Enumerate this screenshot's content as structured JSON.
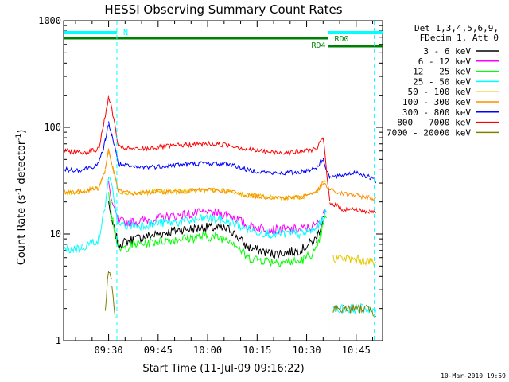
{
  "chart_data": {
    "type": "line",
    "title": "HESSI Observing Summary Count Rates",
    "xlabel": "Start Time (11-Jul-09 09:16:22)",
    "ylabel_prefix": "Count Rate (s",
    "ylabel_sup1": "-1",
    "ylabel_mid": " detector",
    "ylabel_sup2": "-1",
    "ylabel_suffix": ")",
    "y_scale": "log",
    "ylim": [
      1,
      1000
    ],
    "xlim": [
      "09:16:22",
      "10:53:00"
    ],
    "x_ticks": [
      "09:30",
      "09:45",
      "10:00",
      "10:15",
      "10:30",
      "10:45"
    ],
    "y_ticks": [
      "1",
      "10",
      "100",
      "1000"
    ],
    "legend_title_1": "Det 1,3,4,5,6,9,",
    "legend_title_2": "FDecim 1, Att 0",
    "legend_placement": "right",
    "annotations": {
      "n_label": "N",
      "rd0_label": "RD0",
      "rd4_label": "RD4"
    },
    "timestamp": "10-Mar-2010 19:59",
    "series": [
      {
        "name": "3 - 6 keV",
        "color": "#000000",
        "values": [
          [
            "09:16:22",
            null
          ],
          [
            "09:28:00",
            null
          ],
          [
            "09:30:00",
            20
          ],
          [
            "09:31:00",
            13
          ],
          [
            "09:33:00",
            8
          ],
          [
            "09:38:00",
            9
          ],
          [
            "09:45:00",
            10
          ],
          [
            "09:52:00",
            11
          ],
          [
            "10:00:00",
            11.5
          ],
          [
            "10:07:00",
            11
          ],
          [
            "10:12:00",
            7.5
          ],
          [
            "10:20:00",
            6.5
          ],
          [
            "10:28:00",
            7
          ],
          [
            "10:33:00",
            9
          ],
          [
            "10:35:00",
            14
          ],
          [
            "10:36:00",
            16
          ],
          [
            "10:37:00",
            null
          ]
        ]
      },
      {
        "name": "6 - 12 keV",
        "color": "#ff00ff",
        "values": [
          [
            "09:16:22",
            null
          ],
          [
            "09:28:00",
            null
          ],
          [
            "09:30:00",
            30
          ],
          [
            "09:31:00",
            20
          ],
          [
            "09:33:00",
            13
          ],
          [
            "09:38:00",
            13
          ],
          [
            "09:45:00",
            14
          ],
          [
            "09:52:00",
            15
          ],
          [
            "10:00:00",
            16
          ],
          [
            "10:07:00",
            15
          ],
          [
            "10:12:00",
            12
          ],
          [
            "10:20:00",
            11
          ],
          [
            "10:28:00",
            11
          ],
          [
            "10:33:00",
            12
          ],
          [
            "10:35:00",
            15
          ],
          [
            "10:36:00",
            17
          ],
          [
            "10:37:00",
            null
          ]
        ]
      },
      {
        "name": "12 - 25 keV",
        "color": "#00ff00",
        "values": [
          [
            "09:16:22",
            null
          ],
          [
            "09:28:00",
            null
          ],
          [
            "09:30:00",
            25
          ],
          [
            "09:31:00",
            15
          ],
          [
            "09:33:00",
            7
          ],
          [
            "09:38:00",
            8
          ],
          [
            "09:45:00",
            8.5
          ],
          [
            "09:52:00",
            9
          ],
          [
            "10:00:00",
            9.5
          ],
          [
            "10:07:00",
            9
          ],
          [
            "10:12:00",
            6
          ],
          [
            "10:20:00",
            5.5
          ],
          [
            "10:28:00",
            5.5
          ],
          [
            "10:33:00",
            7
          ],
          [
            "10:35:00",
            12
          ],
          [
            "10:36:00",
            15
          ],
          [
            "10:37:00",
            null
          ]
        ]
      },
      {
        "name": "25 - 50 keV",
        "color": "#00ffff",
        "values": [
          [
            "09:16:22",
            7
          ],
          [
            "09:22:00",
            7.5
          ],
          [
            "09:27:00",
            9
          ],
          [
            "09:29:00",
            18
          ],
          [
            "09:30:00",
            35
          ],
          [
            "09:31:00",
            28
          ],
          [
            "09:32:00",
            18
          ],
          [
            "09:33:00",
            12
          ],
          [
            "09:38:00",
            12
          ],
          [
            "09:45:00",
            12.5
          ],
          [
            "09:52:00",
            13
          ],
          [
            "10:00:00",
            14
          ],
          [
            "10:07:00",
            13
          ],
          [
            "10:12:00",
            11
          ],
          [
            "10:20:00",
            10
          ],
          [
            "10:28:00",
            10
          ],
          [
            "10:33:00",
            11
          ],
          [
            "10:35:00",
            14
          ],
          [
            "10:36:00",
            16
          ],
          [
            "10:37:00",
            null
          ],
          [
            "10:38:00",
            2
          ],
          [
            "10:41:00",
            2
          ],
          [
            "10:45:00",
            2
          ],
          [
            "10:49:00",
            2
          ],
          [
            "10:51:00",
            1.8
          ]
        ]
      },
      {
        "name": "50 - 100 keV",
        "color": "#e6c800",
        "values": [
          [
            "09:16:22",
            24
          ],
          [
            "09:22:00",
            25
          ],
          [
            "09:27:00",
            27
          ],
          [
            "09:29:00",
            40
          ],
          [
            "09:30:00",
            60
          ],
          [
            "09:31:00",
            45
          ],
          [
            "09:33:00",
            25
          ],
          [
            "09:38:00",
            24
          ],
          [
            "09:45:00",
            25
          ],
          [
            "09:52:00",
            25
          ],
          [
            "10:00:00",
            26
          ],
          [
            "10:07:00",
            25
          ],
          [
            "10:12:00",
            23
          ],
          [
            "10:20:00",
            22
          ],
          [
            "10:28:00",
            22
          ],
          [
            "10:33:00",
            24
          ],
          [
            "10:35:00",
            30
          ],
          [
            "10:36:00",
            32
          ],
          [
            "10:37:00",
            null
          ],
          [
            "10:38:00",
            6
          ],
          [
            "10:43:00",
            5.8
          ],
          [
            "10:48:00",
            5.6
          ],
          [
            "10:51:00",
            5.2
          ]
        ]
      },
      {
        "name": "100 - 300 keV",
        "color": "#ff8c00",
        "values": [
          [
            "09:16:22",
            25
          ],
          [
            "09:22:00",
            25
          ],
          [
            "09:27:00",
            27
          ],
          [
            "09:29:00",
            40
          ],
          [
            "09:30:00",
            63
          ],
          [
            "09:31:00",
            45
          ],
          [
            "09:33:00",
            25
          ],
          [
            "09:38:00",
            24
          ],
          [
            "09:45:00",
            25
          ],
          [
            "09:52:00",
            25
          ],
          [
            "10:00:00",
            26
          ],
          [
            "10:07:00",
            25
          ],
          [
            "10:12:00",
            23
          ],
          [
            "10:20:00",
            22
          ],
          [
            "10:28:00",
            22
          ],
          [
            "10:33:00",
            25
          ],
          [
            "10:35:00",
            30
          ],
          [
            "10:37:00",
            26
          ],
          [
            "10:40:00",
            24
          ],
          [
            "10:45:00",
            23
          ],
          [
            "10:49:00",
            22
          ],
          [
            "10:51:00",
            21
          ]
        ]
      },
      {
        "name": "300 - 800 keV",
        "color": "#0000ff",
        "values": [
          [
            "09:16:22",
            40
          ],
          [
            "09:22:00",
            40
          ],
          [
            "09:27:00",
            45
          ],
          [
            "09:29:00",
            75
          ],
          [
            "09:30:00",
            110
          ],
          [
            "09:31:00",
            85
          ],
          [
            "09:33:00",
            45
          ],
          [
            "09:38:00",
            42
          ],
          [
            "09:45:00",
            43
          ],
          [
            "09:52:00",
            45
          ],
          [
            "10:00:00",
            46
          ],
          [
            "10:07:00",
            45
          ],
          [
            "10:12:00",
            40
          ],
          [
            "10:20:00",
            37
          ],
          [
            "10:28:00",
            38
          ],
          [
            "10:33:00",
            42
          ],
          [
            "10:35:00",
            50
          ],
          [
            "10:37:00",
            34
          ],
          [
            "10:40:00",
            35
          ],
          [
            "10:45:00",
            38
          ],
          [
            "10:49:00",
            34
          ],
          [
            "10:51:00",
            31
          ]
        ]
      },
      {
        "name": "800 - 7000 keV",
        "color": "#ff0000",
        "values": [
          [
            "09:16:22",
            60
          ],
          [
            "09:22:00",
            58
          ],
          [
            "09:27:00",
            62
          ],
          [
            "09:29:00",
            130
          ],
          [
            "09:30:00",
            190
          ],
          [
            "09:31:00",
            150
          ],
          [
            "09:33:00",
            65
          ],
          [
            "09:38:00",
            62
          ],
          [
            "09:45:00",
            65
          ],
          [
            "09:52:00",
            68
          ],
          [
            "10:00:00",
            70
          ],
          [
            "10:07:00",
            68
          ],
          [
            "10:12:00",
            62
          ],
          [
            "10:20:00",
            58
          ],
          [
            "10:28:00",
            59
          ],
          [
            "10:33:00",
            63
          ],
          [
            "10:35:00",
            80
          ],
          [
            "10:37:00",
            20
          ],
          [
            "10:41:00",
            17
          ],
          [
            "10:45:00",
            17
          ],
          [
            "10:49:00",
            16
          ],
          [
            "10:51:00",
            16
          ]
        ]
      },
      {
        "name": "7000 - 20000 keV",
        "color": "#808000",
        "values": [
          [
            "09:16:22",
            null
          ],
          [
            "09:28:30",
            null
          ],
          [
            "09:29:00",
            2
          ],
          [
            "09:30:00",
            4.5
          ],
          [
            "09:31:00",
            3.5
          ],
          [
            "09:32:00",
            1.5
          ],
          [
            "09:32:30",
            null
          ],
          [
            "10:38:00",
            2
          ],
          [
            "10:41:00",
            2
          ],
          [
            "10:45:00",
            2
          ],
          [
            "10:49:00",
            2
          ],
          [
            "10:51:00",
            1.8
          ]
        ]
      }
    ]
  }
}
